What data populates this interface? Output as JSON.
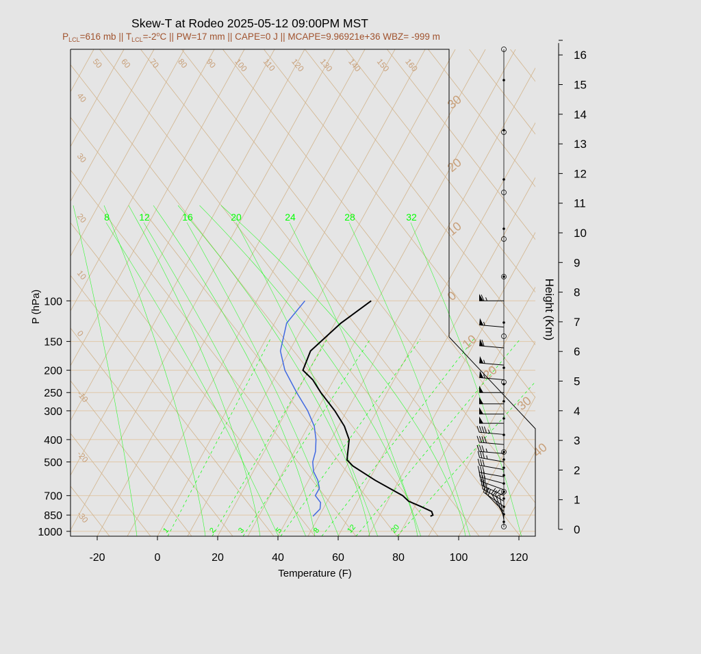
{
  "chart_data": {
    "type": "skew-t",
    "title": "Skew-T at Rodeo 2025-05-12 09:00PM MST",
    "subtitle": {
      "parts": [
        {
          "t": "P",
          "sub": false
        },
        {
          "t": "LCL",
          "sub": true
        },
        {
          "t": "=616 mb || T",
          "sub": false
        },
        {
          "t": "LCL",
          "sub": true
        },
        {
          "t": "=-2",
          "sub": false
        },
        {
          "t": "o",
          "sup": true
        },
        {
          "t": "C || PW=17 mm || CAPE=0 J || MCAPE=9.96921e+36 WBZ= -999 m",
          "sub": false
        }
      ]
    },
    "xlabel": "Temperature (F)",
    "ylabel": "P (hPa)",
    "y2label": "Height (Km)",
    "xlim": [
      -28,
      125
    ],
    "ylim": [
      1050,
      100
    ],
    "pressure_ticks": [
      100,
      150,
      200,
      250,
      300,
      400,
      500,
      700,
      850,
      1000
    ],
    "temperature_ticks": [
      -20,
      0,
      20,
      40,
      60,
      80,
      100,
      120
    ],
    "height_ticks": [
      0,
      1,
      2,
      3,
      4,
      5,
      6,
      7,
      8,
      9,
      10,
      11,
      12,
      13,
      14,
      15,
      16
    ],
    "isotherm_labels": [
      "50",
      "60",
      "70",
      "80",
      "90",
      "100",
      "110",
      "120",
      "130",
      "140",
      "150",
      "160"
    ],
    "dry_adiabat_left_labels": [
      "40",
      "30",
      "20",
      "10",
      "0",
      "-10",
      "-20",
      "-30"
    ],
    "dry_adiabat_right_labels": [
      "30",
      "20",
      "10",
      "0",
      "10",
      "20",
      "30",
      "40"
    ],
    "mixing_ratio_top_labels": [
      "8",
      "12",
      "16",
      "20",
      "24",
      "28",
      "32"
    ],
    "mixing_ratio_bottom_labels": [
      "1",
      "2",
      "3",
      "5",
      "8",
      "12",
      "20"
    ],
    "series": [
      {
        "name": "",
        "role": "temperature",
        "color": "#000000",
        "p": [
          860,
          850,
          820,
          780,
          740,
          700,
          600,
          520,
          490,
          400,
          350,
          300,
          250,
          220,
          200,
          165,
          125,
          100
        ],
        "t_f": [
          87,
          87.6,
          86.5,
          82,
          77,
          74,
          62,
          52,
          49,
          46,
          42,
          36,
          28,
          23,
          18,
          17,
          22,
          28
        ]
      },
      {
        "name": "",
        "role": "dewpoint",
        "color": "#4169e1",
        "p": [
          860,
          800,
          750,
          700,
          650,
          600,
          550,
          500,
          450,
          400,
          350,
          300,
          250,
          200,
          165,
          125,
          100
        ],
        "t_f": [
          48,
          49,
          48,
          45,
          45,
          43,
          40,
          38,
          37,
          35,
          32,
          27,
          20,
          12,
          7,
          4,
          6
        ]
      }
    ],
    "wind_barbs": [
      {
        "p": 100,
        "dir": 270,
        "spd": 65
      },
      {
        "p": 130,
        "dir": 275,
        "spd": 55
      },
      {
        "p": 160,
        "dir": 275,
        "spd": 60
      },
      {
        "p": 190,
        "dir": 275,
        "spd": 55
      },
      {
        "p": 220,
        "dir": 275,
        "spd": 55
      },
      {
        "p": 250,
        "dir": 270,
        "spd": 50
      },
      {
        "p": 280,
        "dir": 270,
        "spd": 50
      },
      {
        "p": 310,
        "dir": 270,
        "spd": 50
      },
      {
        "p": 340,
        "dir": 270,
        "spd": 50
      },
      {
        "p": 380,
        "dir": 275,
        "spd": 45
      },
      {
        "p": 420,
        "dir": 275,
        "spd": 40
      },
      {
        "p": 460,
        "dir": 275,
        "spd": 35
      },
      {
        "p": 500,
        "dir": 280,
        "spd": 35
      },
      {
        "p": 540,
        "dir": 280,
        "spd": 30
      },
      {
        "p": 580,
        "dir": 280,
        "spd": 30
      },
      {
        "p": 620,
        "dir": 285,
        "spd": 30
      },
      {
        "p": 660,
        "dir": 290,
        "spd": 30
      },
      {
        "p": 700,
        "dir": 295,
        "spd": 25
      },
      {
        "p": 740,
        "dir": 300,
        "spd": 25
      },
      {
        "p": 780,
        "dir": 305,
        "spd": 20
      },
      {
        "p": 820,
        "dir": 315,
        "spd": 20
      },
      {
        "p": 850,
        "dir": 330,
        "spd": 20
      },
      {
        "p": 870,
        "dir": 340,
        "spd": 15
      },
      {
        "p": 890,
        "dir": 350,
        "spd": 10
      }
    ],
    "colors": {
      "background": "#e5e5e5",
      "isotherm": "#d2b48c",
      "isobar": "#e0c7a8",
      "mixing_ratio": "#00ff00",
      "subtitle": "#a0522d",
      "label_tan": "#c8a07a"
    }
  }
}
